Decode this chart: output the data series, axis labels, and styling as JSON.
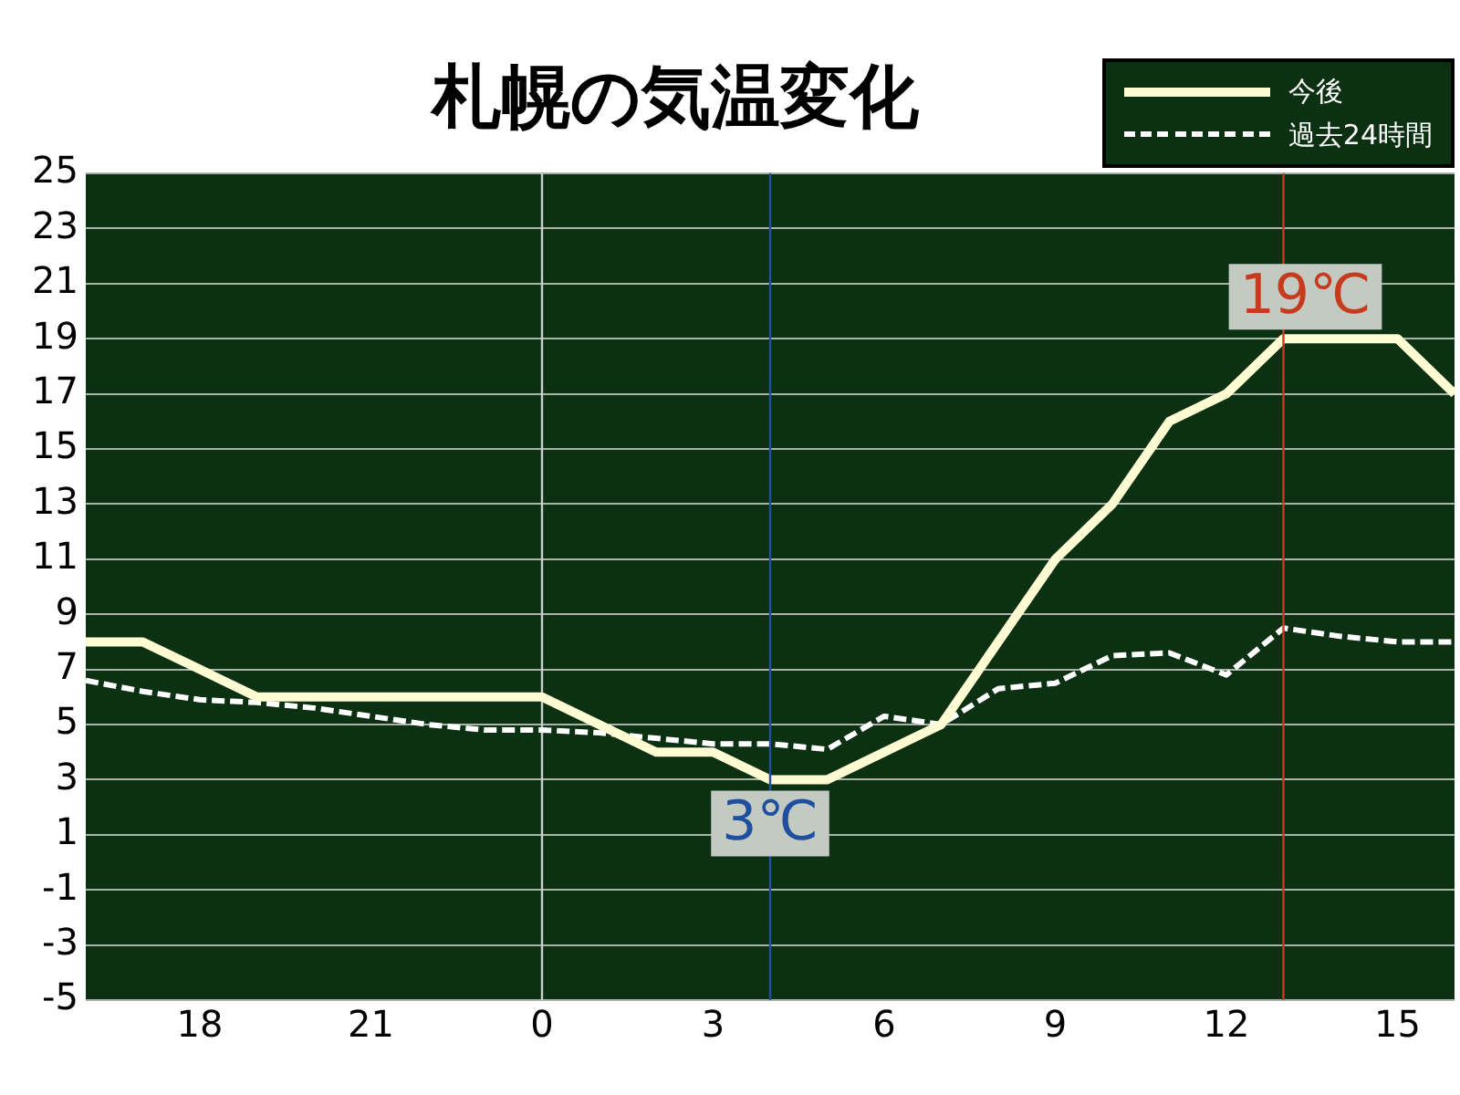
{
  "chart_data": {
    "type": "line",
    "title": "札幌の気温変化",
    "categories": [
      null,
      null,
      "18",
      null,
      null,
      "21",
      null,
      null,
      "0",
      null,
      null,
      "3",
      null,
      null,
      "6",
      null,
      null,
      "9",
      null,
      null,
      "12",
      null,
      null,
      "15",
      null
    ],
    "series": [
      {
        "name": "今後",
        "color": "#fffbd2",
        "line_style": "solid",
        "values": [
          8,
          8,
          7,
          6,
          6,
          6,
          6,
          6,
          6,
          5,
          4,
          4,
          3,
          3,
          4,
          5,
          8,
          11,
          13,
          16,
          17,
          19,
          19,
          19,
          17
        ]
      },
      {
        "name": "過去24時間",
        "color": "#ffffff",
        "line_style": "dashed",
        "values": [
          6.6,
          6.2,
          5.9,
          5.8,
          5.6,
          5.3,
          5.0,
          4.8,
          4.8,
          4.7,
          4.5,
          4.3,
          4.3,
          4.1,
          5.3,
          5.0,
          6.3,
          6.5,
          7.5,
          7.6,
          6.8,
          8.5,
          8.2,
          8.0,
          8.0
        ]
      }
    ],
    "ylim": [
      -5,
      25
    ],
    "yticks": [
      -5,
      -3,
      -1,
      1,
      3,
      5,
      7,
      9,
      11,
      13,
      15,
      17,
      19,
      21,
      23,
      25
    ],
    "ref_lines": [
      {
        "axis": "x",
        "value": "0",
        "color": "#c8d0c8"
      }
    ],
    "annotations": [
      {
        "text": "19℃",
        "y": 19
      },
      {
        "text": "3℃",
        "y": 3
      }
    ],
    "grid": "y",
    "legend": "top right",
    "marker": "none"
  }
}
